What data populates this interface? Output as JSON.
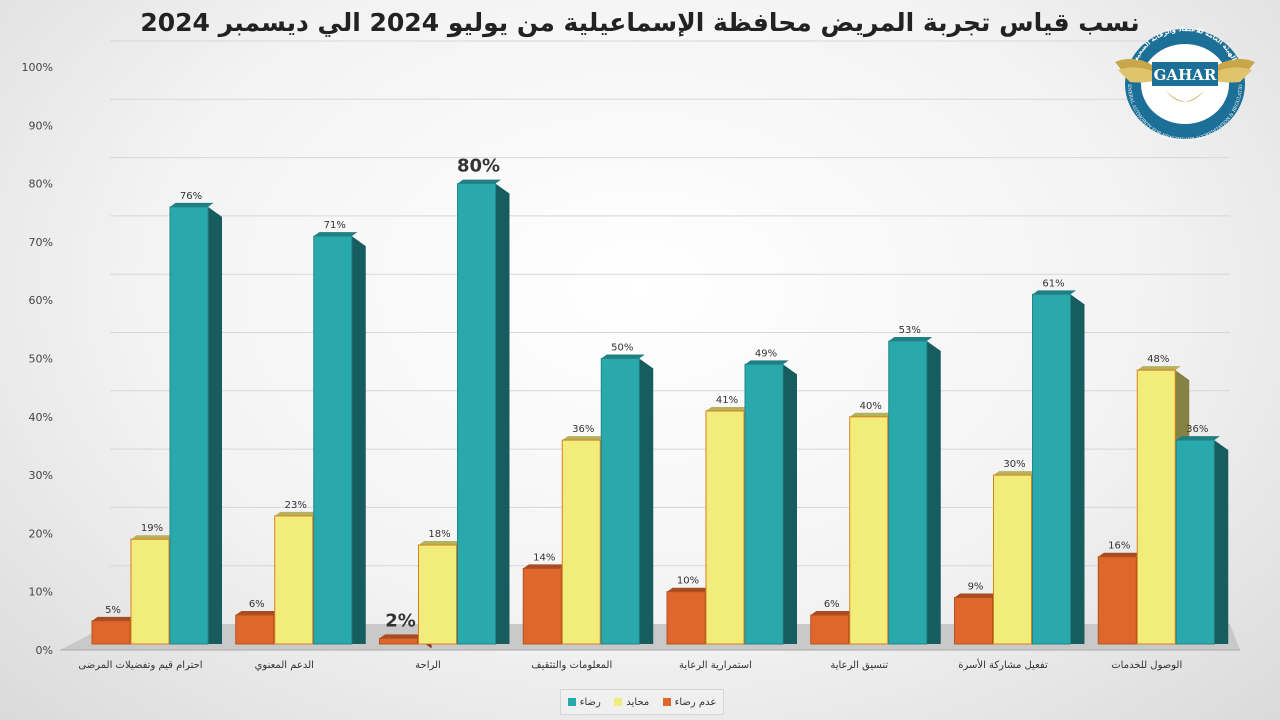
{
  "title": "نسب قياس تجربة المريض محافظة الإسماعيلية من يوليو 2024 الي ديسمبر 2024",
  "logo": {
    "text": "GAHAR",
    "arabic_text": "الهيئة العامة للاعتماد والرقابة الصحية",
    "english_text": "GENERAL AUTHORITY FOR HEALTHCARE ACCREDITATION & REGULATION"
  },
  "chart_data": {
    "type": "bar",
    "title": "نسب قياس تجربة المريض محافظة الإسماعيلية من يوليو 2024 الي ديسمبر 2024",
    "categories": [
      "احترام قيم وتفضيلات المرضى",
      "الدعم المعنوي",
      "الراحة",
      "المعلومات والتثقيف",
      "استمرارية الرعاية",
      "تنسيق الرعاية",
      "تفعيل مشاركة الأسرة",
      "الوصول للخدمات"
    ],
    "series": [
      {
        "name": "عدم رضاء",
        "color": "#e0672c",
        "values": [
          5,
          6,
          2,
          14,
          10,
          6,
          9,
          16
        ],
        "labels": [
          "5%",
          "6%",
          "2%",
          "14%",
          "10%",
          "6%",
          "9%",
          "16%"
        ]
      },
      {
        "name": "محايد",
        "color": "#f2ec7a",
        "values": [
          19,
          23,
          18,
          36,
          41,
          40,
          30,
          48
        ],
        "labels": [
          "19%",
          "23%",
          "18%",
          "36%",
          "41%",
          "40%",
          "30%",
          "48%"
        ]
      },
      {
        "name": "رضاء",
        "color": "#2aa9ad",
        "values": [
          76,
          71,
          80,
          50,
          49,
          53,
          61,
          36
        ],
        "labels": [
          "76%",
          "71%",
          "80%",
          "50%",
          "49%",
          "53%",
          "61%",
          "36%"
        ]
      }
    ],
    "emphasized_labels": [
      [
        2,
        0
      ],
      [
        2,
        2
      ]
    ],
    "y_ticks": [
      "0%",
      "10%",
      "20%",
      "30%",
      "40%",
      "50%",
      "60%",
      "70%",
      "80%",
      "90%",
      "100%"
    ],
    "ylim": [
      0,
      100
    ],
    "grid": true,
    "legend_position": "bottom"
  }
}
